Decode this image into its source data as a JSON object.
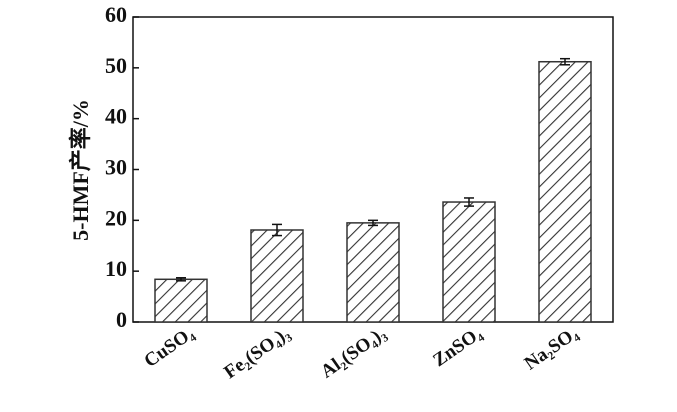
{
  "chart_data": {
    "type": "bar",
    "ylabel": "5-HMF产率/%",
    "categories": [
      "CuSO₄",
      "Fe₂(SO₄)₃",
      "Al₂(SO₄)₃",
      "ZnSO₄",
      "Na₂SO₄"
    ],
    "values": [
      8.4,
      18.1,
      19.5,
      23.6,
      51.2
    ],
    "errors": [
      0.3,
      1.1,
      0.5,
      0.8,
      0.6
    ],
    "color": "#333333",
    "ylim": [
      0,
      60
    ],
    "yticks": [
      0,
      10,
      20,
      30,
      40,
      50,
      60
    ],
    "grid": false
  }
}
